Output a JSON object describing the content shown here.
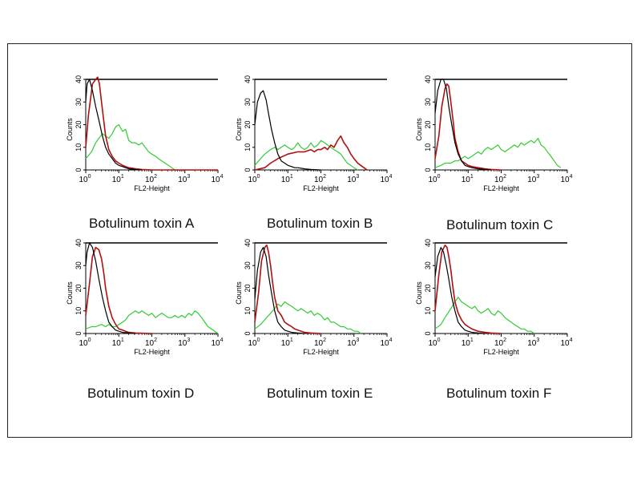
{
  "colors": {
    "black": "#000000",
    "red": "#b01010",
    "green": "#33cc33",
    "axis": "#000000"
  },
  "chart_data": [
    {
      "type": "line",
      "title": "Botulinum toxin A",
      "xlabel": "FL2-Height",
      "ylabel": "Counts",
      "xscale": "log",
      "xlim": [
        1,
        10000
      ],
      "ylim": [
        0,
        40
      ],
      "yticks": [
        "0",
        "10",
        "20",
        "30",
        "40"
      ],
      "xtick_exponents": [
        "0",
        "1",
        "2",
        "3",
        "4"
      ],
      "series": [
        {
          "color": "black",
          "x": [
            1,
            1.1,
            1.3,
            1.6,
            2,
            2.5,
            3.2,
            4,
            5,
            6.3,
            8,
            10,
            13,
            16,
            20,
            32,
            50
          ],
          "y": [
            30,
            38,
            40,
            35,
            28,
            22,
            15,
            10,
            7,
            5,
            3,
            2,
            1.5,
            1,
            0.5,
            0.2,
            0
          ]
        },
        {
          "color": "red",
          "x": [
            1,
            1.2,
            1.6,
            2,
            2.3,
            2.6,
            3,
            3.5,
            4,
            5,
            6.3,
            8,
            10,
            13,
            16,
            20,
            32,
            50,
            100,
            10000
          ],
          "y": [
            10,
            24,
            38,
            40,
            41,
            38,
            30,
            22,
            15,
            9,
            6,
            4,
            3,
            2,
            1.5,
            1,
            0.5,
            0.2,
            0,
            0
          ]
        },
        {
          "color": "green",
          "x": [
            1,
            1.5,
            2,
            2.5,
            3.2,
            4,
            5,
            6.3,
            8,
            10,
            13,
            16,
            20,
            25,
            32,
            40,
            50,
            63,
            80,
            100,
            130,
            160,
            200,
            250,
            320,
            400,
            500
          ],
          "y": [
            5,
            8,
            12,
            14,
            16,
            15,
            14,
            16,
            19,
            20,
            17,
            18,
            13,
            12,
            12,
            11,
            12,
            10,
            8,
            7,
            6,
            5,
            4,
            3,
            2,
            1,
            0
          ]
        }
      ]
    },
    {
      "type": "line",
      "title": "Botulinum toxin B",
      "xlabel": "FL2-Height",
      "ylabel": "Counts",
      "xscale": "log",
      "xlim": [
        1,
        10000
      ],
      "ylim": [
        0,
        40
      ],
      "yticks": [
        "0",
        "10",
        "20",
        "30",
        "40"
      ],
      "xtick_exponents": [
        "0",
        "1",
        "2",
        "3",
        "4"
      ],
      "series": [
        {
          "color": "black",
          "x": [
            1,
            1.2,
            1.5,
            1.8,
            2.2,
            2.6,
            3.2,
            4,
            5,
            6.3,
            8,
            10,
            13,
            16,
            20,
            32,
            50,
            100
          ],
          "y": [
            20,
            30,
            34,
            35,
            31,
            25,
            18,
            12,
            7,
            4,
            3,
            2,
            1.5,
            1,
            1,
            0.5,
            0.2,
            0
          ]
        },
        {
          "color": "red",
          "x": [
            1,
            2,
            3,
            5,
            10,
            20,
            32,
            50,
            63,
            80,
            100,
            130,
            160,
            200,
            250,
            320,
            400,
            500,
            630,
            800,
            1000,
            1300,
            1600,
            2000,
            2500
          ],
          "y": [
            0,
            1,
            3,
            5,
            7,
            8,
            8,
            9,
            8,
            9,
            9,
            10,
            9,
            11,
            10,
            13,
            15,
            12,
            10,
            7,
            5,
            3,
            2,
            1,
            0
          ]
        },
        {
          "color": "green",
          "x": [
            1,
            1.5,
            2,
            3,
            4,
            5,
            6.3,
            8,
            10,
            13,
            16,
            20,
            25,
            32,
            40,
            50,
            63,
            80,
            100,
            130,
            160,
            200,
            250,
            320,
            400,
            500,
            630,
            800,
            1000,
            1300
          ],
          "y": [
            2,
            5,
            7,
            9,
            10,
            9,
            10,
            11,
            10,
            9,
            10,
            12,
            10,
            9,
            10,
            12,
            10,
            11,
            13,
            12,
            11,
            10,
            9,
            8,
            7,
            5,
            3,
            2,
            1,
            0
          ]
        }
      ]
    },
    {
      "type": "line",
      "title": "Botulinum toxin C",
      "xlabel": "FL2-Height",
      "ylabel": "Counts",
      "xscale": "log",
      "xlim": [
        1,
        10000
      ],
      "ylim": [
        0,
        40
      ],
      "yticks": [
        "0",
        "10",
        "20",
        "30",
        "40"
      ],
      "xtick_exponents": [
        "0",
        "1",
        "2",
        "3",
        "4"
      ],
      "series": [
        {
          "color": "black",
          "x": [
            1,
            1.2,
            1.5,
            1.8,
            2.2,
            2.6,
            3.2,
            4,
            5,
            6.3,
            8,
            10,
            13,
            20,
            32,
            50
          ],
          "y": [
            25,
            35,
            40,
            40,
            36,
            28,
            20,
            12,
            7,
            4,
            2,
            1.5,
            1,
            0.5,
            0.2,
            0
          ]
        },
        {
          "color": "red",
          "x": [
            1,
            1.3,
            1.6,
            2,
            2.3,
            2.6,
            3,
            3.5,
            4,
            5,
            6.3,
            8,
            10,
            13,
            20,
            32,
            50,
            100
          ],
          "y": [
            5,
            15,
            28,
            36,
            38,
            37,
            30,
            22,
            14,
            8,
            4,
            3,
            2,
            1.5,
            1,
            0.5,
            0.2,
            0
          ]
        },
        {
          "color": "green",
          "x": [
            1,
            1.5,
            2,
            3,
            4,
            5,
            6.3,
            8,
            10,
            13,
            16,
            20,
            25,
            32,
            40,
            50,
            63,
            80,
            100,
            130,
            160,
            200,
            250,
            320,
            400,
            500,
            630,
            800,
            1000,
            1300,
            1600,
            2000,
            2500,
            3200,
            4000,
            5000,
            6300
          ],
          "y": [
            1,
            2,
            3,
            3,
            4,
            4,
            5,
            6,
            5,
            6,
            7,
            8,
            7,
            9,
            10,
            9,
            10,
            11,
            9,
            8,
            9,
            10,
            11,
            10,
            12,
            11,
            12,
            13,
            12,
            14,
            11,
            10,
            8,
            6,
            4,
            2,
            1
          ]
        }
      ]
    },
    {
      "type": "line",
      "title": "Botulinum toxin D",
      "xlabel": "FL2-Height",
      "ylabel": "Counts",
      "xscale": "log",
      "xlim": [
        1,
        10000
      ],
      "ylim": [
        0,
        40
      ],
      "yticks": [
        "0",
        "10",
        "20",
        "30",
        "40"
      ],
      "xtick_exponents": [
        "0",
        "1",
        "2",
        "3",
        "4"
      ],
      "series": [
        {
          "color": "black",
          "x": [
            1,
            1.1,
            1.3,
            1.6,
            2,
            2.5,
            3.2,
            4,
            5,
            6.3,
            8,
            10,
            13,
            20,
            32
          ],
          "y": [
            30,
            36,
            40,
            38,
            32,
            24,
            16,
            10,
            5,
            3,
            1.5,
            1,
            0.5,
            0.2,
            0
          ]
        },
        {
          "color": "red",
          "x": [
            1,
            1.3,
            1.6,
            2,
            2.5,
            3,
            3.5,
            4,
            5,
            6.3,
            8,
            10,
            13,
            16,
            20,
            32,
            50,
            100
          ],
          "y": [
            8,
            22,
            34,
            38,
            37,
            33,
            27,
            20,
            12,
            7,
            4,
            2,
            1.5,
            1,
            0.5,
            0.2,
            0.1,
            0
          ]
        },
        {
          "color": "green",
          "x": [
            1,
            1.5,
            2,
            3,
            4,
            5,
            6.3,
            8,
            10,
            13,
            16,
            20,
            25,
            32,
            40,
            50,
            63,
            80,
            100,
            130,
            160,
            200,
            250,
            320,
            400,
            500,
            630,
            800,
            1000,
            1300,
            1600,
            2000,
            2500,
            3200,
            4000,
            5000,
            6300,
            8000,
            10000
          ],
          "y": [
            2,
            3,
            3,
            4,
            3,
            4,
            3,
            3,
            4,
            5,
            6,
            8,
            9,
            10,
            9,
            10,
            9,
            8,
            9,
            7,
            8,
            9,
            8,
            7,
            7,
            8,
            7,
            8,
            7,
            9,
            8,
            10,
            9,
            7,
            5,
            3,
            2,
            1,
            0
          ]
        }
      ]
    },
    {
      "type": "line",
      "title": "Botulinum toxin E",
      "xlabel": "FL2-Height",
      "ylabel": "Counts",
      "xscale": "log",
      "xlim": [
        1,
        10000
      ],
      "ylim": [
        0,
        40
      ],
      "yticks": [
        "0",
        "10",
        "20",
        "30",
        "40"
      ],
      "xtick_exponents": [
        "0",
        "1",
        "2",
        "3",
        "4"
      ],
      "series": [
        {
          "color": "black",
          "x": [
            1,
            1.2,
            1.5,
            1.8,
            2.2,
            2.6,
            3.2,
            4,
            5,
            6.3,
            8,
            10,
            13,
            20,
            32
          ],
          "y": [
            15,
            28,
            36,
            38,
            34,
            26,
            18,
            10,
            5,
            3,
            1.5,
            1,
            0.5,
            0.2,
            0
          ]
        },
        {
          "color": "red",
          "x": [
            1,
            1.3,
            1.6,
            2,
            2.3,
            2.6,
            3,
            3.5,
            4,
            5,
            6.3,
            8,
            10,
            13,
            16,
            20,
            32,
            50,
            100
          ],
          "y": [
            5,
            18,
            32,
            38,
            39,
            36,
            30,
            22,
            16,
            10,
            8,
            5,
            4,
            3,
            2,
            1.5,
            0.5,
            0.2,
            0
          ]
        },
        {
          "color": "green",
          "x": [
            1,
            1.5,
            2,
            3,
            4,
            5,
            6.3,
            8,
            10,
            13,
            16,
            20,
            25,
            32,
            40,
            50,
            63,
            80,
            100,
            130,
            160,
            200,
            250,
            320,
            400,
            500,
            630,
            800,
            1000,
            1300,
            1600
          ],
          "y": [
            2,
            4,
            6,
            9,
            11,
            13,
            12,
            14,
            13,
            12,
            11,
            10,
            11,
            10,
            9,
            10,
            8,
            9,
            8,
            6,
            7,
            5,
            5,
            4,
            3,
            3,
            2,
            2,
            1,
            1,
            0
          ]
        }
      ]
    },
    {
      "type": "line",
      "title": "Botulinum toxin F",
      "xlabel": "FL2-Height",
      "ylabel": "Counts",
      "xscale": "log",
      "xlim": [
        1,
        10000
      ],
      "ylim": [
        0,
        40
      ],
      "yticks": [
        "0",
        "10",
        "20",
        "30",
        "40"
      ],
      "xtick_exponents": [
        "0",
        "1",
        "2",
        "3",
        "4"
      ],
      "series": [
        {
          "color": "black",
          "x": [
            1,
            1.2,
            1.5,
            1.8,
            2.2,
            2.6,
            3.2,
            4,
            5,
            6.3,
            8,
            10,
            13,
            20,
            32
          ],
          "y": [
            25,
            34,
            38,
            36,
            30,
            24,
            16,
            10,
            5,
            3,
            1.5,
            1,
            0.5,
            0.2,
            0
          ]
        },
        {
          "color": "red",
          "x": [
            1,
            1.3,
            1.6,
            2,
            2.3,
            2.6,
            3,
            3.5,
            4,
            5,
            6.3,
            8,
            10,
            13,
            16,
            20,
            32,
            50,
            100
          ],
          "y": [
            10,
            26,
            36,
            39,
            38,
            34,
            28,
            20,
            14,
            9,
            6,
            4,
            3,
            2,
            1.5,
            1,
            0.5,
            0.2,
            0
          ]
        },
        {
          "color": "green",
          "x": [
            1,
            1.5,
            2,
            3,
            4,
            5,
            6.3,
            8,
            10,
            13,
            16,
            20,
            25,
            32,
            40,
            50,
            63,
            80,
            100,
            130,
            160,
            200,
            250,
            320,
            400,
            500,
            630,
            800,
            1000
          ],
          "y": [
            2,
            4,
            7,
            11,
            14,
            16,
            14,
            13,
            12,
            11,
            12,
            10,
            9,
            10,
            11,
            9,
            8,
            10,
            9,
            7,
            6,
            5,
            4,
            3,
            2,
            2,
            1,
            1,
            0
          ]
        }
      ]
    }
  ]
}
